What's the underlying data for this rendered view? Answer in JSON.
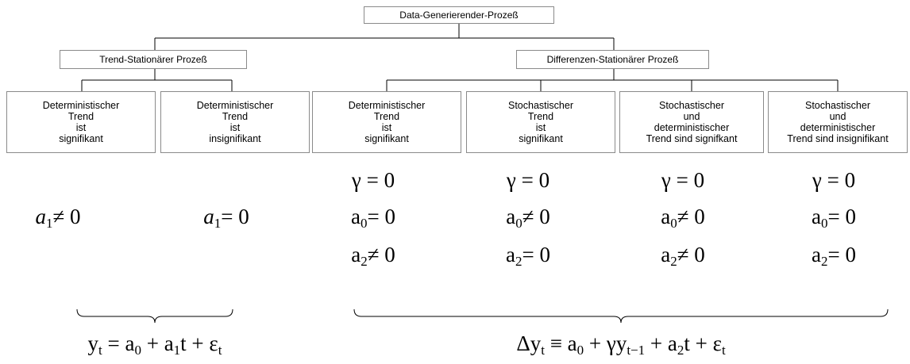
{
  "root": "Data-Generierender-Prozeß",
  "branches": [
    {
      "label": "Trend-Stationärer Prozeß",
      "leaves": [
        {
          "lines": [
            "Deterministischer",
            "Trend",
            "ist",
            "signifikant"
          ],
          "conditions": [
            {
              "text": "a",
              "sub": "1",
              "relation": "≠ 0"
            }
          ]
        },
        {
          "lines": [
            "Deterministischer",
            "Trend",
            "ist",
            "insignifikant"
          ],
          "conditions": [
            {
              "text": "a",
              "sub": "1",
              "relation": "= 0"
            }
          ]
        }
      ],
      "formula": [
        {
          "text": "y",
          "sub": "t"
        },
        {
          "text": " = a",
          "sub": "0"
        },
        {
          "text": " + a",
          "sub": "1"
        },
        {
          "text": "t + ε",
          "sub": "t"
        }
      ]
    },
    {
      "label": "Differenzen-Stationärer Prozeß",
      "leaves": [
        {
          "lines": [
            "Deterministischer",
            "Trend",
            "ist",
            "signifikant"
          ],
          "conditions": [
            {
              "text": "γ = 0"
            },
            {
              "text": "a",
              "sub": "0",
              "relation": "= 0"
            },
            {
              "text": "a",
              "sub": "2",
              "relation": "≠ 0"
            }
          ]
        },
        {
          "lines": [
            "Stochastischer",
            "Trend",
            "ist",
            "signifikant"
          ],
          "conditions": [
            {
              "text": "γ = 0"
            },
            {
              "text": "a",
              "sub": "0",
              "relation": "≠ 0"
            },
            {
              "text": "a",
              "sub": "2",
              "relation": "= 0"
            }
          ]
        },
        {
          "lines": [
            "Stochastischer",
            "und",
            "deterministischer",
            "Trend sind signifkant"
          ],
          "conditions": [
            {
              "text": "γ = 0"
            },
            {
              "text": "a",
              "sub": "0",
              "relation": "≠ 0"
            },
            {
              "text": "a",
              "sub": "2",
              "relation": "≠ 0"
            }
          ]
        },
        {
          "lines": [
            "Stochastischer",
            "und",
            "deterministischer",
            "Trend sind insignifikant"
          ],
          "conditions": [
            {
              "text": "γ = 0"
            },
            {
              "text": "a",
              "sub": "0",
              "relation": "= 0"
            },
            {
              "text": "a",
              "sub": "2",
              "relation": "= 0"
            }
          ]
        }
      ],
      "formula": [
        {
          "text": "Δy",
          "sub": "t"
        },
        {
          "text": " ≡ a",
          "sub": "0"
        },
        {
          "text": " + γy",
          "sub": "t−1"
        },
        {
          "text": " + a",
          "sub": "2"
        },
        {
          "text": "t + ε",
          "sub": "t"
        }
      ]
    }
  ]
}
